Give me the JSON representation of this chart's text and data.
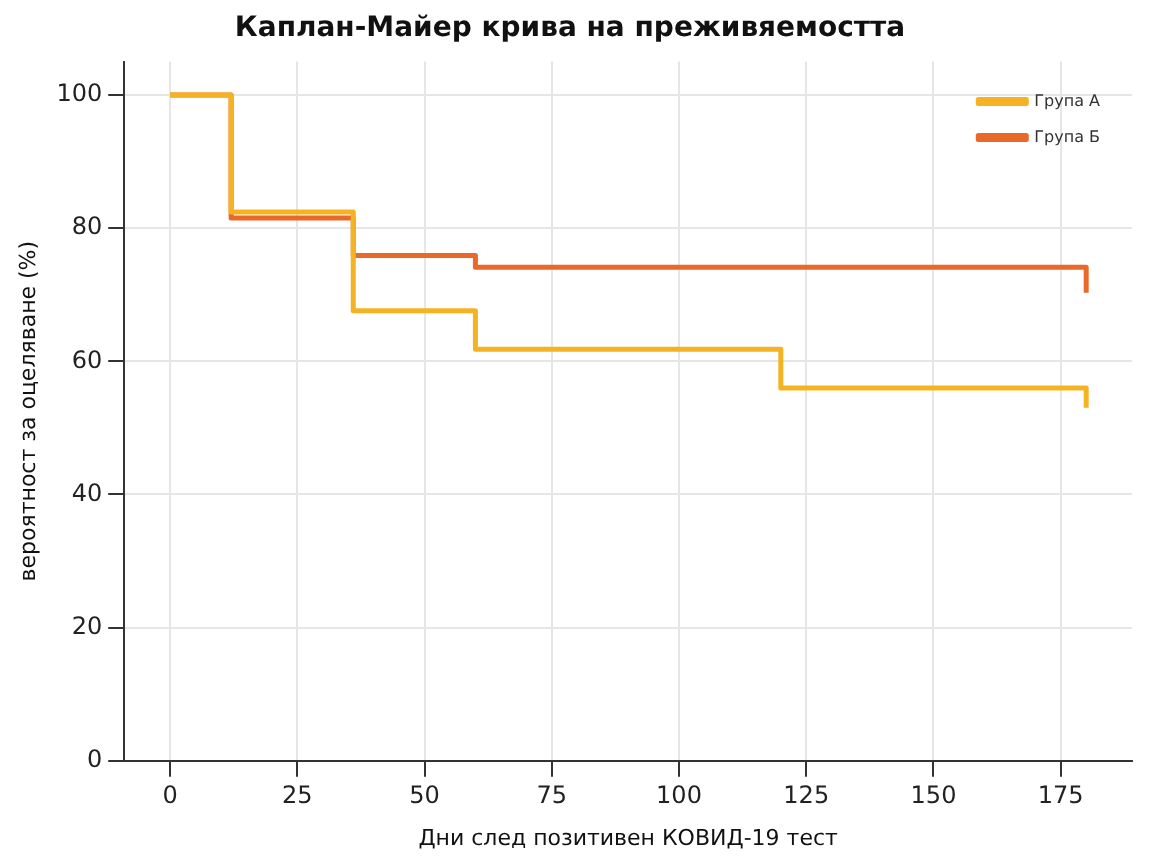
{
  "chart_data": {
    "type": "step",
    "title": "Каплан-Майер крива на преживяемостта",
    "xlabel": "Дни след позитивен КОВИД-19 тест",
    "ylabel": "вероятност за оцеляване (%)",
    "series": [
      {
        "name": "Група А",
        "color": "#f5b324",
        "x": [
          0,
          12,
          36,
          60,
          120,
          180
        ],
        "values": [
          100,
          82.4,
          67.6,
          61.8,
          56,
          53
        ]
      },
      {
        "name": "Група Б",
        "color": "#e8692a",
        "x": [
          0,
          12,
          36,
          60,
          180
        ],
        "values": [
          100,
          81.5,
          75.9,
          74.1,
          70.3
        ]
      }
    ],
    "xlim": [
      -9,
      189
    ],
    "xticks": [
      0,
      25,
      50,
      75,
      100,
      125,
      150,
      175
    ],
    "ylim": [
      0,
      105
    ],
    "yticks": [
      0,
      20,
      40,
      60,
      80,
      100
    ],
    "grid": true,
    "legend": "top right",
    "line_style": "solid"
  }
}
